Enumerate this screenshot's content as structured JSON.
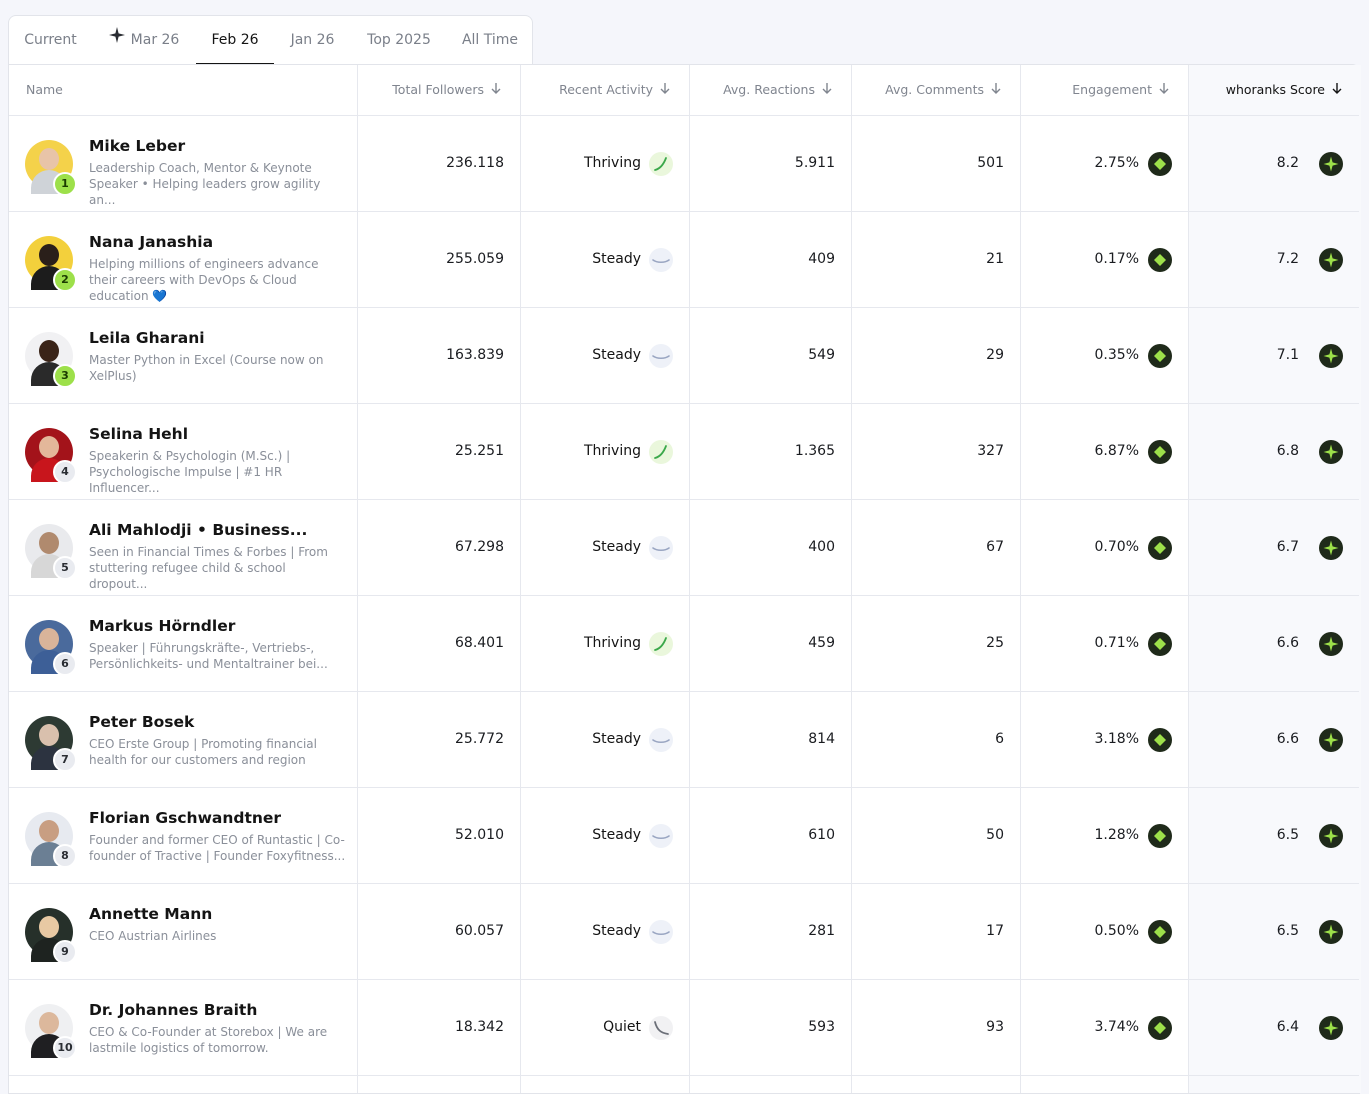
{
  "tabs": [
    {
      "label": "Current",
      "active": false,
      "icon": ""
    },
    {
      "label": "Mar 26",
      "active": false,
      "icon": "sparkle-icon"
    },
    {
      "label": "Feb 26",
      "active": true,
      "icon": ""
    },
    {
      "label": "Jan 26",
      "active": false,
      "icon": ""
    },
    {
      "label": "Top 2025",
      "active": false,
      "icon": ""
    },
    {
      "label": "All Time",
      "active": false,
      "icon": ""
    }
  ],
  "columns": {
    "name": "Name",
    "followers": "Total Followers",
    "activity": "Recent Activity",
    "reactions": "Avg. Reactions",
    "comments": "Avg. Comments",
    "engagement": "Engagement",
    "score": "whoranks Score"
  },
  "colors": {
    "accent_green": "#9de04a",
    "badge_dark": "#1f2a1a",
    "trend_up": "#3aa84a",
    "trend_flat": "#9aa6c2",
    "trend_down": "#6b6f78"
  },
  "rows": [
    {
      "rank": "1",
      "name": "Mike Leber",
      "desc": "Leadership Coach, Mentor & Keynote Speaker • Helping leaders grow agility an...",
      "followers": "236.118",
      "activity": "Thriving",
      "trend": "up",
      "reactions": "5.911",
      "comments": "501",
      "engagement": "2.75%",
      "score": "8.2"
    },
    {
      "rank": "2",
      "name": "Nana Janashia",
      "desc": "Helping millions of engineers advance their careers with DevOps & Cloud education 💙",
      "followers": "255.059",
      "activity": "Steady",
      "trend": "flat",
      "reactions": "409",
      "comments": "21",
      "engagement": "0.17%",
      "score": "7.2"
    },
    {
      "rank": "3",
      "name": "Leila Gharani",
      "desc": "Master Python in Excel (Course now on XelPlus)",
      "followers": "163.839",
      "activity": "Steady",
      "trend": "flat",
      "reactions": "549",
      "comments": "29",
      "engagement": "0.35%",
      "score": "7.1"
    },
    {
      "rank": "4",
      "name": "Selina Hehl",
      "desc": "Speakerin & Psychologin (M.Sc.) | Psychologische Impulse | #1 HR Influencer...",
      "followers": "25.251",
      "activity": "Thriving",
      "trend": "up",
      "reactions": "1.365",
      "comments": "327",
      "engagement": "6.87%",
      "score": "6.8"
    },
    {
      "rank": "5",
      "name": "Ali Mahlodji • Business...",
      "desc": "Seen in Financial Times & Forbes | From stuttering refugee child & school dropout...",
      "followers": "67.298",
      "activity": "Steady",
      "trend": "flat",
      "reactions": "400",
      "comments": "67",
      "engagement": "0.70%",
      "score": "6.7"
    },
    {
      "rank": "6",
      "name": "Markus Hörndler",
      "desc": "Speaker | Führungskräfte-, Vertriebs-, Persönlichkeits- und Mentaltrainer bei...",
      "followers": "68.401",
      "activity": "Thriving",
      "trend": "up",
      "reactions": "459",
      "comments": "25",
      "engagement": "0.71%",
      "score": "6.6"
    },
    {
      "rank": "7",
      "name": "Peter Bosek",
      "desc": "CEO Erste Group | Promoting financial health for our customers and region",
      "followers": "25.772",
      "activity": "Steady",
      "trend": "flat",
      "reactions": "814",
      "comments": "6",
      "engagement": "3.18%",
      "score": "6.6"
    },
    {
      "rank": "8",
      "name": "Florian Gschwandtner",
      "desc": "Founder and former CEO of Runtastic | Co-founder of Tractive | Founder Foxyfitness...",
      "followers": "52.010",
      "activity": "Steady",
      "trend": "flat",
      "reactions": "610",
      "comments": "50",
      "engagement": "1.28%",
      "score": "6.5"
    },
    {
      "rank": "9",
      "name": "Annette Mann",
      "desc": "CEO Austrian Airlines",
      "followers": "60.057",
      "activity": "Steady",
      "trend": "flat",
      "reactions": "281",
      "comments": "17",
      "engagement": "0.50%",
      "score": "6.5"
    },
    {
      "rank": "10",
      "name": "Dr. Johannes Braith",
      "desc": "CEO & Co-Founder at Storebox | We are lastmile logistics of tomorrow.",
      "followers": "18.342",
      "activity": "Quiet",
      "trend": "down",
      "reactions": "593",
      "comments": "93",
      "engagement": "3.74%",
      "score": "6.4"
    }
  ]
}
